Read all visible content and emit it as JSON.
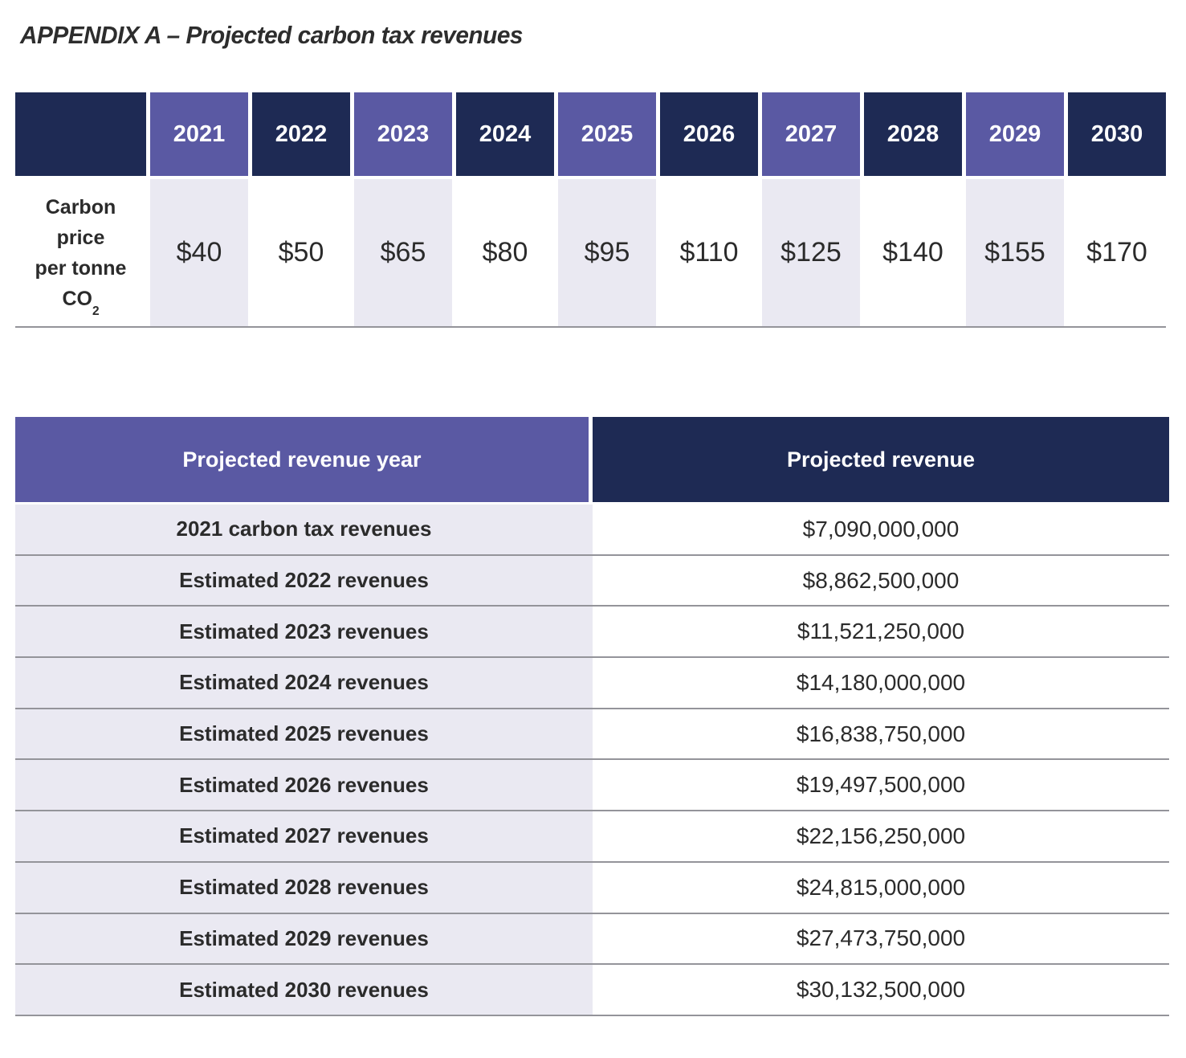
{
  "page": {
    "title": "APPENDIX A – Projected carbon tax revenues"
  },
  "colors": {
    "purple": "#5a59a3",
    "navy": "#1e2a54",
    "lavender": "#eae9f2",
    "rule": "#94949a",
    "text": "#2b2b2b",
    "white": "#ffffff"
  },
  "price_table": {
    "row_label_line1": "Carbon",
    "row_label_line2": "price",
    "row_label_line3": "per tonne",
    "co2_base": "CO",
    "co2_sub": "2",
    "columns": [
      {
        "year": "2021",
        "price": "$40"
      },
      {
        "year": "2022",
        "price": "$50"
      },
      {
        "year": "2023",
        "price": "$65"
      },
      {
        "year": "2024",
        "price": "$80"
      },
      {
        "year": "2025",
        "price": "$95"
      },
      {
        "year": "2026",
        "price": "$110"
      },
      {
        "year": "2027",
        "price": "$125"
      },
      {
        "year": "2028",
        "price": "$140"
      },
      {
        "year": "2029",
        "price": "$155"
      },
      {
        "year": "2030",
        "price": "$170"
      }
    ]
  },
  "revenue_table": {
    "header_year": "Projected revenue year",
    "header_revenue": "Projected revenue",
    "rows": [
      {
        "label": "2021 carbon tax revenues",
        "value": "$7,090,000,000"
      },
      {
        "label": "Estimated 2022 revenues",
        "value": "$8,862,500,000"
      },
      {
        "label": "Estimated 2023 revenues",
        "value": "$11,521,250,000"
      },
      {
        "label": "Estimated 2024 revenues",
        "value": "$14,180,000,000"
      },
      {
        "label": "Estimated 2025 revenues",
        "value": "$16,838,750,000"
      },
      {
        "label": "Estimated 2026 revenues",
        "value": "$19,497,500,000"
      },
      {
        "label": "Estimated 2027 revenues",
        "value": "$22,156,250,000"
      },
      {
        "label": "Estimated 2028 revenues",
        "value": "$24,815,000,000"
      },
      {
        "label": "Estimated 2029 revenues",
        "value": "$27,473,750,000"
      },
      {
        "label": "Estimated 2030 revenues",
        "value": "$30,132,500,000"
      }
    ]
  }
}
